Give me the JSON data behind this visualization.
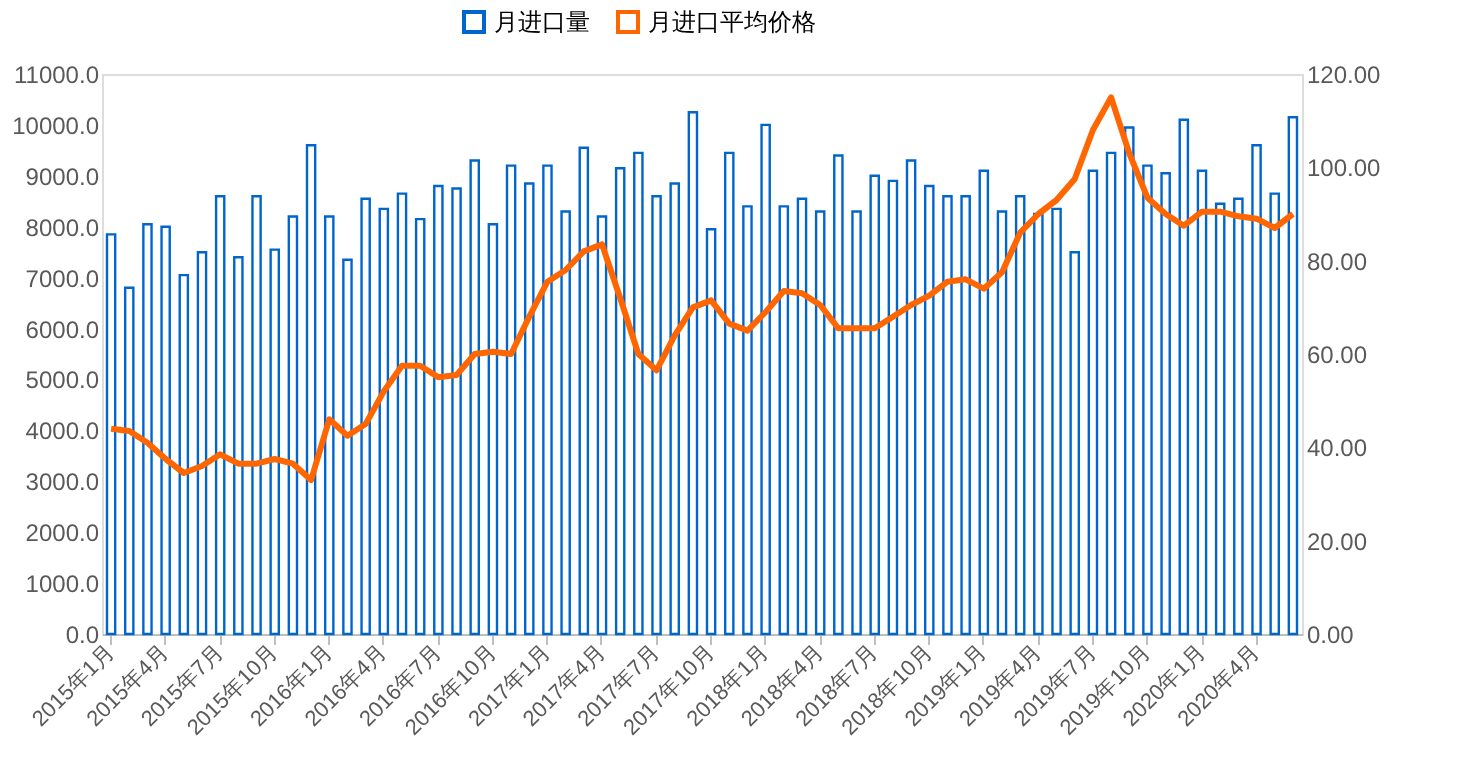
{
  "chart_data": {
    "type": "bar",
    "categories": [
      "2015年1月",
      null,
      null,
      "2015年4月",
      null,
      null,
      "2015年7月",
      null,
      null,
      "2015年10月",
      null,
      null,
      "2016年1月",
      null,
      null,
      "2016年4月",
      null,
      null,
      "2016年7月",
      null,
      null,
      "2016年10月",
      null,
      null,
      "2017年1月",
      null,
      null,
      "2017年4月",
      null,
      null,
      "2017年7月",
      null,
      null,
      "2017年10月",
      null,
      null,
      "2018年1月",
      null,
      null,
      "2018年4月",
      null,
      null,
      "2018年7月",
      null,
      null,
      "2018年10月",
      null,
      null,
      "2019年1月",
      null,
      null,
      "2019年4月",
      null,
      null,
      "2019年7月",
      null,
      null,
      "2019年10月",
      null,
      null,
      "2020年1月",
      null,
      null,
      "2020年4月",
      null,
      null
    ],
    "series": [
      {
        "name": "月进口量",
        "type": "bar",
        "color": "#0066cc",
        "values": [
          7850,
          6800,
          8050,
          8000,
          7050,
          7500,
          8600,
          7400,
          8600,
          7550,
          8200,
          9600,
          8200,
          7350,
          8550,
          8350,
          8650,
          8150,
          8800,
          8750,
          9300,
          8050,
          9200,
          8850,
          9200,
          8300,
          9550,
          8200,
          9150,
          9450,
          8600,
          8850,
          10250,
          7950,
          9450,
          8400,
          10000,
          8400,
          8550,
          8300,
          9400,
          8300,
          9000,
          8900,
          9300,
          8800,
          8600,
          8600,
          9100,
          8300,
          8600,
          8250,
          8350,
          7500,
          9100,
          9450,
          9950,
          9200,
          9050,
          10100,
          9100,
          8450,
          8550,
          9600,
          8650,
          10150
        ]
      },
      {
        "name": "月进口平均价格",
        "type": "line",
        "axis": "y2",
        "color": "#ff6600",
        "values": [
          44,
          43.5,
          41,
          37.5,
          34.5,
          36,
          38.5,
          36.5,
          36.5,
          37.5,
          36.5,
          33,
          46,
          42.5,
          45,
          52,
          57.5,
          57.5,
          55,
          55.5,
          60,
          60.5,
          60,
          68,
          75.5,
          78,
          82,
          83.5,
          72,
          60,
          56.5,
          64,
          70,
          71.5,
          66.5,
          65,
          69,
          73.5,
          73,
          70.5,
          65.5,
          65.5,
          65.5,
          68,
          70.5,
          72.5,
          75.5,
          76,
          74,
          77.5,
          86,
          90,
          93,
          97.5,
          108,
          115,
          103,
          93.5,
          90,
          87.5,
          90.5,
          90.5,
          89.5,
          89,
          87,
          90
        ]
      }
    ],
    "ylim": [
      0,
      11000
    ],
    "yticks": [
      {
        "value": 0,
        "label": "0.0"
      },
      {
        "value": 1000,
        "label": "1000.0"
      },
      {
        "value": 2000,
        "label": "2000.0"
      },
      {
        "value": 3000,
        "label": "3000.0"
      },
      {
        "value": 4000,
        "label": "4000.0"
      },
      {
        "value": 5000,
        "label": "5000.0"
      },
      {
        "value": 6000,
        "label": "6000.0"
      },
      {
        "value": 7000,
        "label": "7000.0"
      },
      {
        "value": 8000,
        "label": "8000.0"
      },
      {
        "value": 9000,
        "label": "9000.0"
      },
      {
        "value": 10000,
        "label": "10000.0"
      },
      {
        "value": 11000,
        "label": "11000.0"
      }
    ],
    "y2lim": [
      0,
      120
    ],
    "y2ticks": [
      {
        "value": 0,
        "label": "0.00"
      },
      {
        "value": 20,
        "label": "20.00"
      },
      {
        "value": 40,
        "label": "40.00"
      },
      {
        "value": 60,
        "label": "60.00"
      },
      {
        "value": 80,
        "label": "80.00"
      },
      {
        "value": 100,
        "label": "100.00"
      },
      {
        "value": 120,
        "label": "120.00"
      }
    ],
    "legend": "top",
    "grid": false,
    "marker": "none",
    "line_style": "solid"
  }
}
